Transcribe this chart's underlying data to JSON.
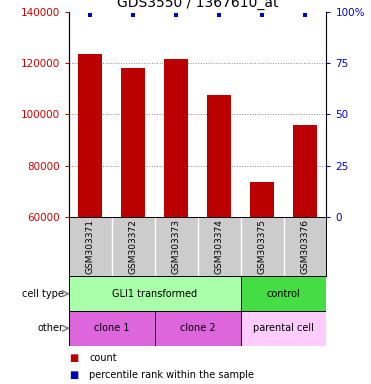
{
  "title": "GDS3550 / 1367610_at",
  "samples": [
    "GSM303371",
    "GSM303372",
    "GSM303373",
    "GSM303374",
    "GSM303375",
    "GSM303376"
  ],
  "counts": [
    123500,
    118000,
    121500,
    107500,
    73500,
    96000
  ],
  "percentile_ranks": [
    100,
    100,
    100,
    100,
    100,
    100
  ],
  "ylim_left": [
    60000,
    140000
  ],
  "ylim_right": [
    0,
    100
  ],
  "yticks_left": [
    60000,
    80000,
    100000,
    120000,
    140000
  ],
  "yticks_right": [
    0,
    25,
    50,
    75,
    100
  ],
  "bar_color": "#bb0000",
  "percentile_color": "#0000bb",
  "bar_width": 0.55,
  "cell_type_labels": [
    {
      "label": "GLI1 transformed",
      "start": 0,
      "end": 3,
      "color": "#aaffaa"
    },
    {
      "label": "control",
      "start": 4,
      "end": 5,
      "color": "#44dd44"
    }
  ],
  "other_labels": [
    {
      "label": "clone 1",
      "start": 0,
      "end": 1,
      "color": "#dd66dd"
    },
    {
      "label": "clone 2",
      "start": 2,
      "end": 3,
      "color": "#dd66dd"
    },
    {
      "label": "parental cell",
      "start": 4,
      "end": 5,
      "color": "#ffccff"
    }
  ],
  "row_labels": [
    "cell type",
    "other"
  ],
  "legend_items": [
    {
      "color": "#bb0000",
      "label": "count"
    },
    {
      "color": "#0000bb",
      "label": "percentile rank within the sample"
    }
  ],
  "sample_bg_color": "#cccccc",
  "background_color": "#ffffff",
  "grid_color": "#888888",
  "tick_label_color_left": "#cc0000",
  "tick_label_color_right": "#0000cc",
  "title_fontsize": 10,
  "tick_fontsize": 7.5,
  "label_fontsize": 7,
  "sample_fontsize": 6.5
}
